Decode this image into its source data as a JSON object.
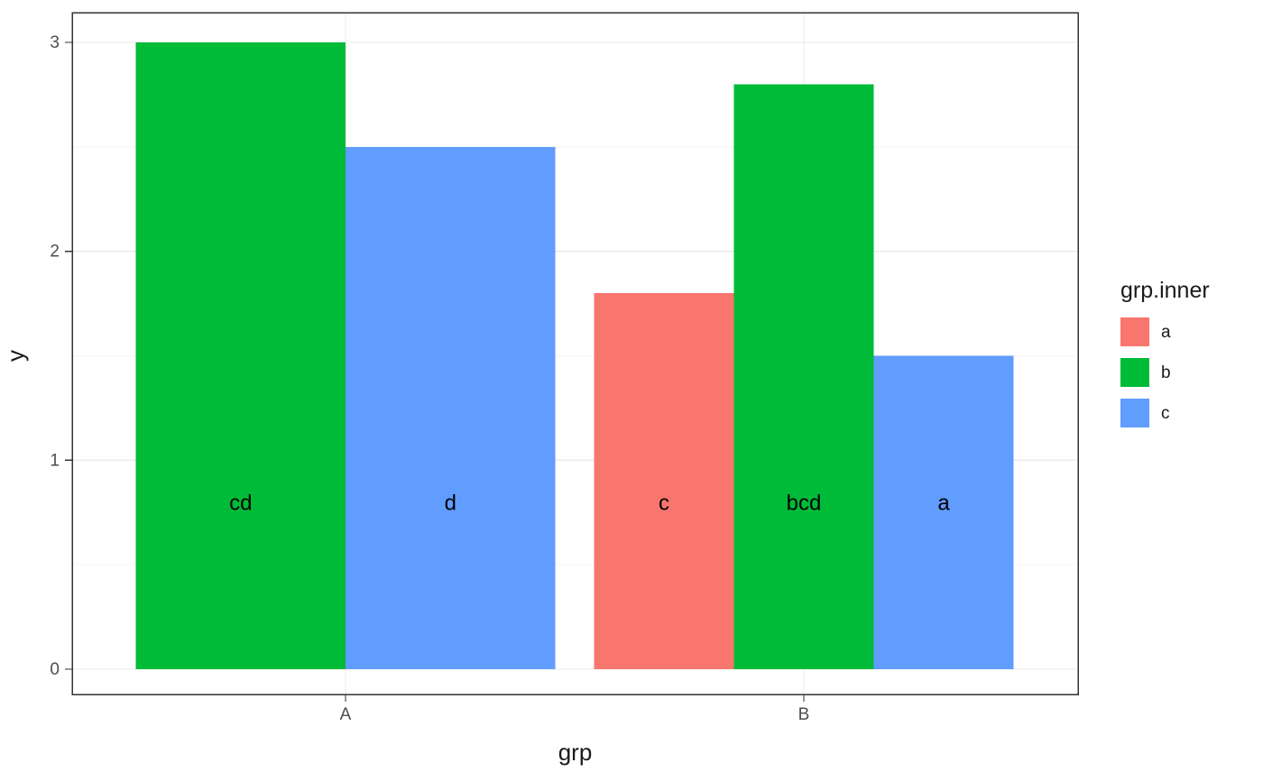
{
  "chart_data": {
    "type": "bar",
    "title": "",
    "xlabel": "grp",
    "ylabel": "y",
    "ylim": [
      0,
      3
    ],
    "yticks": [
      0,
      1,
      2,
      3
    ],
    "yminor": [
      0.5,
      1.5,
      2.5
    ],
    "categories": [
      "A",
      "B"
    ],
    "grid": true,
    "legend_position": "right",
    "legend": {
      "title": "grp.inner",
      "entries": [
        {
          "label": "a",
          "color": "#F8766D"
        },
        {
          "label": "b",
          "color": "#00BB38"
        },
        {
          "label": "c",
          "color": "#619CFF"
        }
      ]
    },
    "bars": [
      {
        "group": "A",
        "inner": "b",
        "value": 3.0,
        "label": "cd",
        "color": "#00BB38"
      },
      {
        "group": "A",
        "inner": "c",
        "value": 2.5,
        "label": "d",
        "color": "#619CFF"
      },
      {
        "group": "B",
        "inner": "a",
        "value": 1.8,
        "label": "c",
        "color": "#F8766D"
      },
      {
        "group": "B",
        "inner": "b",
        "value": 2.8,
        "label": "bcd",
        "color": "#00BB38"
      },
      {
        "group": "B",
        "inner": "c",
        "value": 1.5,
        "label": "a",
        "color": "#619CFF"
      }
    ],
    "bar_label_y": 0.8,
    "theme": {
      "background": "#FFFFFF",
      "panel_bg": "#FFFFFF",
      "panel_border": "#333333",
      "grid_major": "#EBEBEB",
      "grid_minor": "#F5F5F5",
      "tick_mark": "#333333",
      "tick_text": "#4D4D4D",
      "axis_title": "#1A1A1A",
      "legend_text": "#1A1A1A",
      "bar_label": "#000000"
    }
  }
}
